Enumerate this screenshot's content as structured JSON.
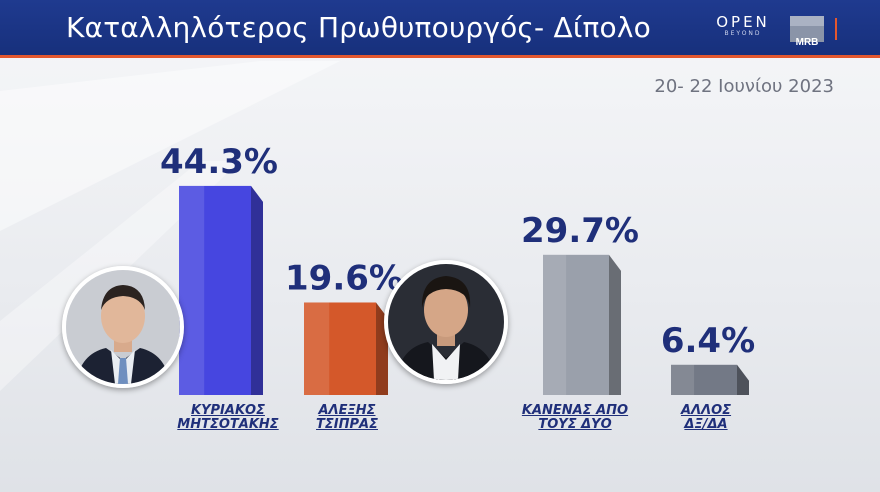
{
  "header": {
    "title": "Καταλληλότερος Πρωθυπουργός- Δίπολο",
    "brand_open": "OPEN",
    "brand_open_sub": "BEYOND",
    "brand_mrb": "MRB",
    "date": "20- 22 Ιουνίου 2023"
  },
  "colors": {
    "header_bg": "#1f3a8f",
    "accent_line": "#e4572e",
    "value_text": "#1f2f7a",
    "label_text": "#1f2f7a"
  },
  "chart_data": {
    "type": "bar",
    "categories": [
      "ΚΥΡΙΑΚΟΣ ΜΗΤΣΟΤΑΚΗΣ",
      "ΑΛΕΞΗΣ ΤΣΙΠΡΑΣ",
      "ΚΑΝΕΝΑΣ ΑΠΟ ΤΟΥΣ ΔΥΟ",
      "ΑΛΛΟΣ ΔΞ/ΔΑ"
    ],
    "label_lines": [
      [
        "ΚΥΡΙΑΚΟΣ",
        "ΜΗΤΣΟΤΑΚΗΣ"
      ],
      [
        "ΑΛΕΞΗΣ",
        "ΤΣΙΠΡΑΣ"
      ],
      [
        "ΚΑΝΕΝΑΣ ΑΠΟ",
        "ΤΟΥΣ ΔΥΟ"
      ],
      [
        "ΑΛΛΟΣ",
        "ΔΞ/ΔΑ"
      ]
    ],
    "values": [
      44.3,
      19.6,
      29.7,
      6.4
    ],
    "value_labels": [
      "44.3%",
      "19.6%",
      "29.7%",
      "6.4%"
    ],
    "bar_colors": [
      "#4646e0",
      "#d4582a",
      "#9aa0ab",
      "#737986"
    ],
    "unit": "%",
    "title": "",
    "xlabel": "",
    "ylabel": "",
    "ylim": [
      0,
      50
    ],
    "grid": false,
    "legend": "none"
  },
  "avatars": [
    {
      "name_icon": "portrait-mitsotakis-icon"
    },
    {
      "name_icon": "portrait-tsipras-icon"
    }
  ]
}
